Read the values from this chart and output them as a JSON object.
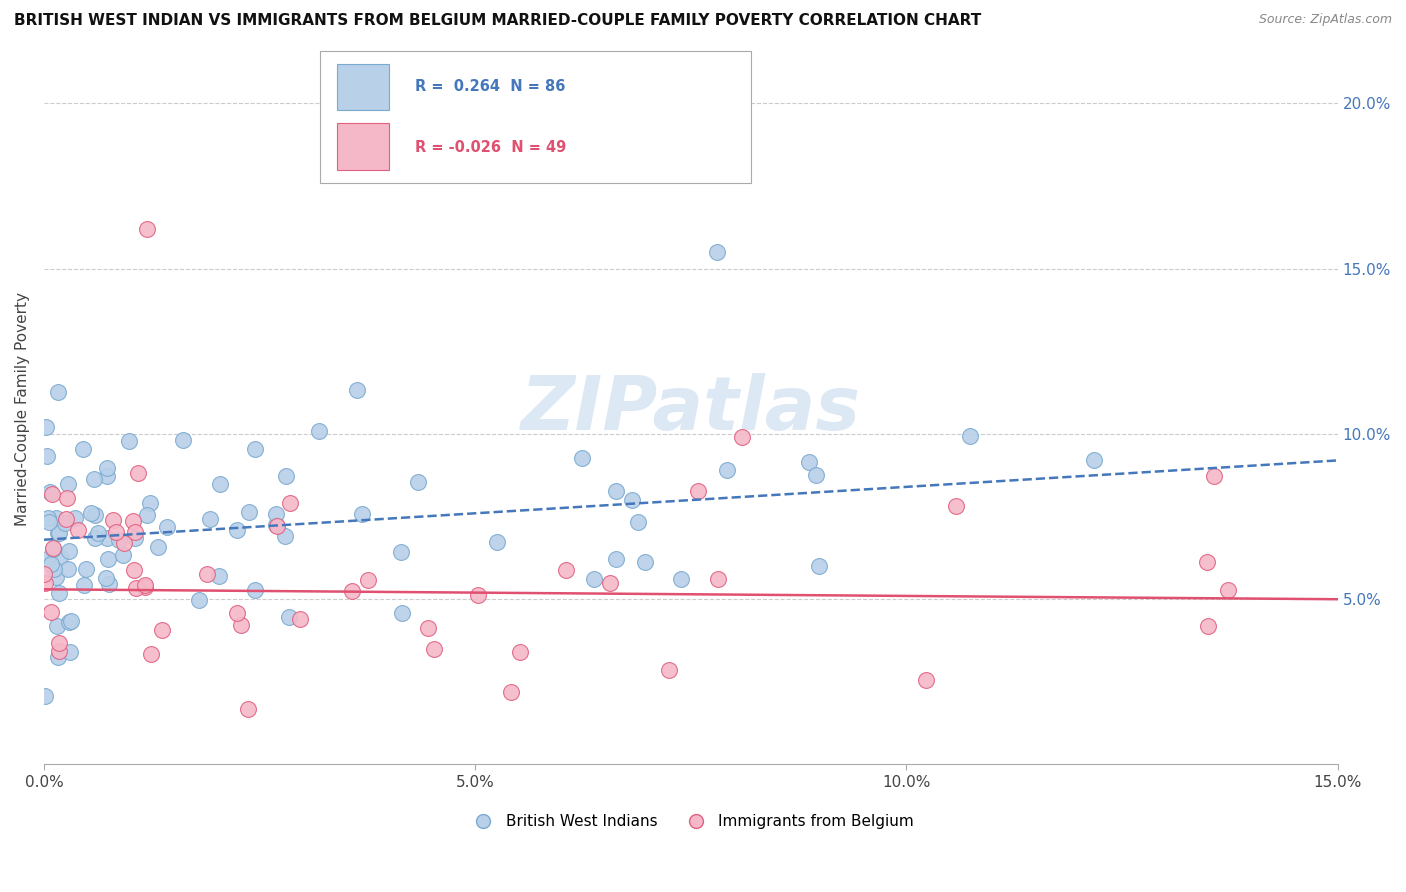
{
  "title": "BRITISH WEST INDIAN VS IMMIGRANTS FROM BELGIUM MARRIED-COUPLE FAMILY POVERTY CORRELATION CHART",
  "source": "Source: ZipAtlas.com",
  "ylabel": "Married-Couple Family Poverty",
  "xlim": [
    0.0,
    0.15
  ],
  "ylim": [
    0.0,
    0.215
  ],
  "xticks": [
    0.0,
    0.05,
    0.1,
    0.15
  ],
  "yticks": [
    0.05,
    0.1,
    0.15,
    0.2
  ],
  "ytick_labels": [
    "5.0%",
    "10.0%",
    "15.0%",
    "20.0%"
  ],
  "xtick_labels": [
    "0.0%",
    "5.0%",
    "10.0%",
    "15.0%"
  ],
  "series1_color": "#b8d0e8",
  "series1_edge": "#7aaad0",
  "series2_color": "#f5b8c8",
  "series2_edge": "#e06080",
  "line1_color": "#4477bb",
  "line2_color": "#e05070",
  "legend_r1": "R =  0.264  N = 86",
  "legend_r2": "R = -0.026  N = 49",
  "legend1_label": "British West Indians",
  "legend2_label": "Immigrants from Belgium",
  "watermark": "ZIPatlas",
  "R1": 0.264,
  "N1": 86,
  "R2": -0.026,
  "N2": 49,
  "seed": 42,
  "line1_y0": 0.068,
  "line1_y1": 0.092,
  "line2_y0": 0.053,
  "line2_y1": 0.05
}
